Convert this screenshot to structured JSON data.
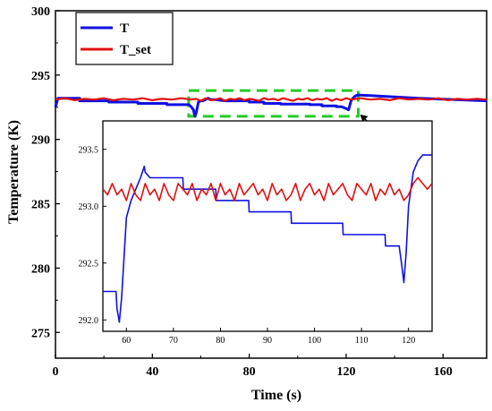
{
  "chart_data": {
    "type": "line",
    "xlabel": "Time (s)",
    "ylabel": "Temperature (K)",
    "xlim": [
      0,
      178
    ],
    "ylim": [
      273,
      300
    ],
    "xticks": [
      0,
      40,
      80,
      120,
      160
    ],
    "yticks": [
      275,
      280,
      285,
      290,
      295,
      300
    ],
    "legend": {
      "placement": "top-left"
    },
    "grid": false,
    "colors": {
      "T": "#1010e0",
      "T_set": "#e01010",
      "highlight": "#22cc22"
    },
    "highlight_box": {
      "x": [
        55,
        125
      ],
      "y": [
        291.8,
        293.8
      ]
    },
    "series": [
      {
        "name": "T",
        "x": [
          0,
          1,
          1.5,
          10,
          10,
          22,
          22,
          34,
          34,
          46,
          46,
          55,
          56,
          57,
          57.5,
          58,
          59,
          60,
          61,
          63,
          64,
          65,
          66,
          70,
          72,
          72,
          80,
          80,
          86,
          86,
          93,
          93,
          105,
          105,
          110,
          110,
          116,
          116,
          118,
          120,
          121,
          122,
          123,
          124,
          125,
          130,
          140,
          150,
          165,
          178
        ],
        "values": [
          292.5,
          293.2,
          293.2,
          293.2,
          293.0,
          293.0,
          292.9,
          292.9,
          292.8,
          292.8,
          292.7,
          292.7,
          292.55,
          292.3,
          291.8,
          292.0,
          292.9,
          293.0,
          293.0,
          293.2,
          293.1,
          293.1,
          293.1,
          293.0,
          293.0,
          293.0,
          293.0,
          292.9,
          292.9,
          292.8,
          292.8,
          292.75,
          292.75,
          292.7,
          292.7,
          292.6,
          292.6,
          292.55,
          292.55,
          292.4,
          292.3,
          293.0,
          293.25,
          293.4,
          293.45,
          293.4,
          293.3,
          293.2,
          293.1,
          293.0
        ]
      },
      {
        "name": "T_set",
        "x": [
          0,
          4,
          8,
          12,
          16,
          20,
          24,
          28,
          32,
          36,
          40,
          44,
          48,
          52,
          56,
          58,
          60,
          62,
          64,
          66,
          68,
          70,
          72,
          74,
          76,
          78,
          80,
          82,
          84,
          86,
          88,
          90,
          92,
          94,
          96,
          98,
          100,
          102,
          104,
          106,
          108,
          110,
          112,
          114,
          116,
          118,
          120,
          122,
          124,
          126,
          130,
          134,
          138,
          142,
          146,
          150,
          154,
          158,
          162,
          166,
          170,
          174,
          178
        ],
        "values": [
          293.1,
          293.2,
          293.05,
          293.15,
          293.1,
          293.2,
          293.05,
          293.15,
          293.1,
          293.2,
          293.05,
          293.15,
          293.1,
          293.2,
          293.1,
          293.15,
          293.0,
          293.2,
          293.05,
          293.1,
          293.2,
          293.0,
          293.15,
          293.1,
          293.2,
          293.05,
          293.15,
          293.1,
          293.0,
          293.2,
          293.1,
          293.15,
          293.05,
          293.2,
          293.1,
          293.0,
          293.15,
          293.1,
          293.2,
          293.05,
          293.15,
          293.1,
          293.2,
          293.0,
          293.15,
          293.05,
          293.2,
          293.1,
          293.15,
          293.2,
          293.1,
          293.15,
          293.05,
          293.2,
          293.1,
          293.15,
          293.1,
          293.2,
          293.05,
          293.15,
          293.1,
          293.15,
          293.1
        ]
      }
    ],
    "inset": {
      "xlim": [
        55,
        125
      ],
      "ylim": [
        291.9,
        293.75
      ],
      "xticks": [
        60,
        70,
        80,
        90,
        100,
        110,
        120
      ],
      "yticks": [
        292.0,
        292.5,
        293.0,
        293.5
      ],
      "series": [
        {
          "name": "T",
          "x": [
            55,
            57.8,
            58,
            58.5,
            59,
            60,
            61,
            62,
            63,
            63.8,
            64,
            65,
            66,
            67,
            68,
            72,
            72.1,
            79,
            79.1,
            86,
            86.1,
            95,
            95.1,
            106,
            106.1,
            115,
            115.1,
            118,
            118.5,
            119,
            119.5,
            120,
            121,
            122,
            123,
            124,
            125
          ],
          "values": [
            292.25,
            292.25,
            292.1,
            291.98,
            292.2,
            292.9,
            293.05,
            293.15,
            293.25,
            293.35,
            293.3,
            293.25,
            293.25,
            293.25,
            293.25,
            293.25,
            293.15,
            293.15,
            293.05,
            293.05,
            292.95,
            292.95,
            292.85,
            292.85,
            292.75,
            292.75,
            292.65,
            292.65,
            292.5,
            292.33,
            292.6,
            293.0,
            293.3,
            293.4,
            293.45,
            293.45,
            293.45
          ]
        },
        {
          "name": "T_set",
          "x": [
            55,
            56,
            57,
            58,
            59,
            60,
            61,
            62,
            63,
            64,
            65,
            66,
            67,
            68,
            69,
            70,
            71,
            72,
            73,
            74,
            75,
            76,
            77,
            78,
            79,
            80,
            81,
            82,
            83,
            84,
            85,
            86,
            87,
            88,
            89,
            90,
            91,
            92,
            93,
            94,
            95,
            96,
            97,
            98,
            99,
            100,
            101,
            102,
            103,
            104,
            105,
            106,
            107,
            108,
            109,
            110,
            111,
            112,
            113,
            114,
            115,
            116,
            117,
            118,
            119,
            120,
            121,
            122,
            123,
            124,
            125
          ],
          "values": [
            293.15,
            293.1,
            293.2,
            293.1,
            293.15,
            293.05,
            293.2,
            293.1,
            293.05,
            293.2,
            293.1,
            293.15,
            293.05,
            293.2,
            293.1,
            293.05,
            293.2,
            293.15,
            293.1,
            293.2,
            293.05,
            293.15,
            293.1,
            293.2,
            293.05,
            293.2,
            293.1,
            293.15,
            293.05,
            293.2,
            293.1,
            293.15,
            293.2,
            293.1,
            293.15,
            293.05,
            293.2,
            293.1,
            293.15,
            293.05,
            293.1,
            293.2,
            293.05,
            293.15,
            293.2,
            293.1,
            293.15,
            293.05,
            293.2,
            293.1,
            293.15,
            293.2,
            293.1,
            293.05,
            293.2,
            293.15,
            293.1,
            293.2,
            293.05,
            293.15,
            293.1,
            293.2,
            293.1,
            293.15,
            293.05,
            293.1,
            293.2,
            293.25,
            293.2,
            293.15,
            293.2
          ]
        }
      ]
    }
  }
}
